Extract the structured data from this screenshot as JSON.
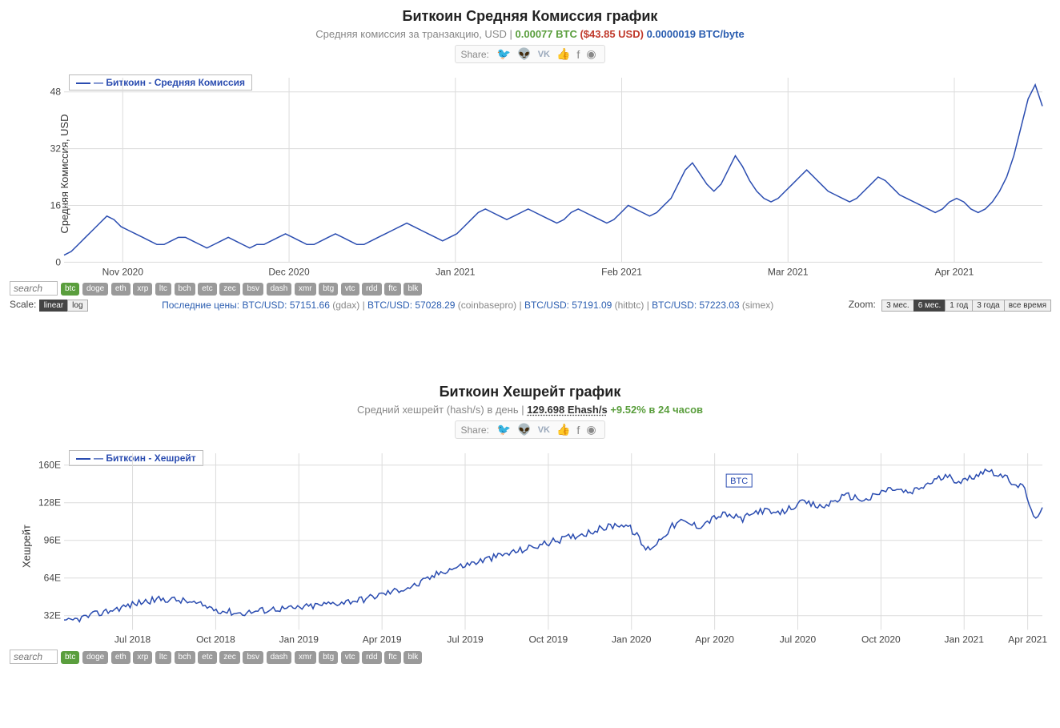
{
  "chart1": {
    "title": "Биткоин Средняя Комиссия график",
    "subtitle_prefix": "Средняя комиссия за транзакцию, USD",
    "sep": " | ",
    "val_btc": "0.00077 BTC",
    "val_usd": "($43.85 USD)",
    "val_btcbyte": "0.0000019 BTC/byte",
    "legend": "Биткоин - Средняя Комиссия",
    "ylabel": "Средняя Комиссия, USD",
    "type": "line",
    "line_color": "#2a4cb0",
    "background_color": "#ffffff",
    "grid_color": "#dcdcdc",
    "ylim": [
      0,
      52
    ],
    "yticks": [
      0,
      16,
      32,
      48
    ],
    "xticks": [
      "Nov 2020",
      "Dec 2020",
      "Jan 2021",
      "Feb 2021",
      "Mar 2021",
      "Apr 2021"
    ],
    "xtick_positions": [
      0.06,
      0.23,
      0.4,
      0.57,
      0.74,
      0.91
    ],
    "data": [
      2,
      3,
      5,
      7,
      9,
      11,
      13,
      12,
      10,
      9,
      8,
      7,
      6,
      5,
      5,
      6,
      7,
      7,
      6,
      5,
      4,
      5,
      6,
      7,
      6,
      5,
      4,
      5,
      5,
      6,
      7,
      8,
      7,
      6,
      5,
      5,
      6,
      7,
      8,
      7,
      6,
      5,
      5,
      6,
      7,
      8,
      9,
      10,
      11,
      10,
      9,
      8,
      7,
      6,
      7,
      8,
      10,
      12,
      14,
      15,
      14,
      13,
      12,
      13,
      14,
      15,
      14,
      13,
      12,
      11,
      12,
      14,
      15,
      14,
      13,
      12,
      11,
      12,
      14,
      16,
      15,
      14,
      13,
      14,
      16,
      18,
      22,
      26,
      28,
      25,
      22,
      20,
      22,
      26,
      30,
      27,
      23,
      20,
      18,
      17,
      18,
      20,
      22,
      24,
      26,
      24,
      22,
      20,
      19,
      18,
      17,
      18,
      20,
      22,
      24,
      23,
      21,
      19,
      18,
      17,
      16,
      15,
      14,
      15,
      17,
      18,
      17,
      15,
      14,
      15,
      17,
      20,
      24,
      30,
      38,
      46,
      50,
      44
    ]
  },
  "chart2": {
    "title": "Биткоин Хешрейт график",
    "subtitle_prefix": "Средний хешрейт (hash/s) в день",
    "sep": " | ",
    "val_rate": "129.698 Ehash/s",
    "val_change": "+9.52% в 24 часов",
    "legend": "Биткоин - Хешрейт",
    "ylabel": "Хешрейт",
    "type": "line",
    "line_color": "#2a4cb0",
    "background_color": "#ffffff",
    "grid_color": "#dcdcdc",
    "ylim": [
      20,
      170
    ],
    "yticks": [
      32,
      64,
      96,
      128,
      160
    ],
    "ytick_suffix": "E",
    "xticks": [
      "Jul 2018",
      "Oct 2018",
      "Jan 2019",
      "Apr 2019",
      "Jul 2019",
      "Oct 2019",
      "Jan 2020",
      "Apr 2020",
      "Jul 2020",
      "Oct 2020",
      "Jan 2021",
      "Apr 2021"
    ],
    "xtick_positions": [
      0.07,
      0.155,
      0.24,
      0.325,
      0.41,
      0.495,
      0.58,
      0.665,
      0.75,
      0.835,
      0.92,
      0.985
    ],
    "btc_marker_x": 0.69,
    "btc_marker_label": "BTC",
    "data_base": [
      26,
      28,
      30,
      32,
      34,
      36,
      38,
      40,
      42,
      44,
      45,
      46,
      46,
      45,
      44,
      42,
      40,
      38,
      36,
      35,
      34,
      35,
      36,
      37,
      38,
      38,
      38,
      39,
      40,
      41,
      42,
      43,
      44,
      45,
      46,
      48,
      50,
      52,
      54,
      56,
      58,
      62,
      66,
      70,
      72,
      74,
      76,
      78,
      80,
      82,
      84,
      86,
      88,
      90,
      92,
      94,
      96,
      98,
      100,
      102,
      104,
      106,
      108,
      110,
      108,
      100,
      88,
      92,
      100,
      108,
      112,
      110,
      108,
      112,
      116,
      118,
      116,
      114,
      118,
      122,
      120,
      118,
      122,
      126,
      128,
      126,
      124,
      128,
      132,
      134,
      132,
      130,
      134,
      138,
      140,
      138,
      136,
      140,
      144,
      148,
      150,
      148,
      146,
      150,
      154,
      156,
      152,
      148,
      144,
      140,
      114,
      124
    ],
    "noise_amp": 6
  },
  "share": {
    "label": "Share:"
  },
  "coins": [
    "btc",
    "doge",
    "eth",
    "xrp",
    "ltc",
    "bch",
    "etc",
    "zec",
    "bsv",
    "dash",
    "xmr",
    "btg",
    "vtc",
    "rdd",
    "ftc",
    "blk"
  ],
  "search_placeholder": "search",
  "scale": {
    "label": "Scale:",
    "options": [
      "linear",
      "log"
    ],
    "active": "linear"
  },
  "prices": {
    "prefix": "Последние цены:",
    "items": [
      {
        "pair": "BTC/USD:",
        "val": "57151.66",
        "src": "(gdax)"
      },
      {
        "pair": "BTC/USD:",
        "val": "57028.29",
        "src": "(coinbasepro)"
      },
      {
        "pair": "BTC/USD:",
        "val": "57191.09",
        "src": "(hitbtc)"
      },
      {
        "pair": "BTC/USD:",
        "val": "57223.03",
        "src": "(simex)"
      }
    ]
  },
  "zoom": {
    "label": "Zoom:",
    "options": [
      "3 мес.",
      "6 мес.",
      "1 год",
      "3 года",
      "все время"
    ],
    "active": "6 мес."
  }
}
